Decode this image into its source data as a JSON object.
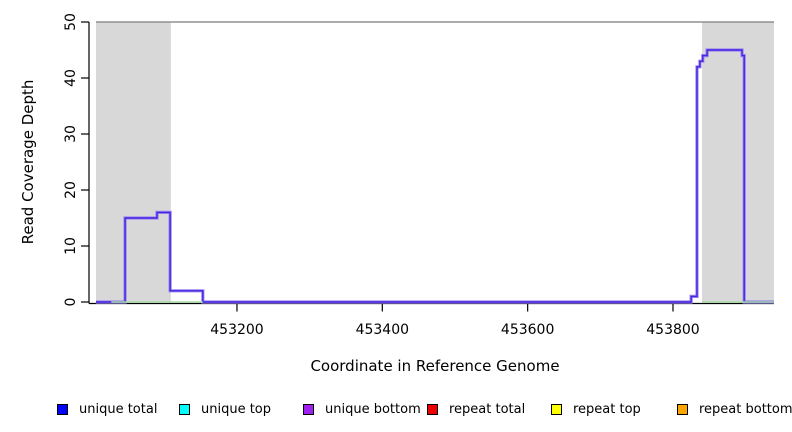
{
  "chart_data": {
    "type": "line",
    "subtype": "step-coverage",
    "title": "",
    "xlabel": "Coordinate in Reference Genome",
    "ylabel": "Read Coverage Depth",
    "xlim": [
      453006,
      453939
    ],
    "ylim": [
      0,
      50
    ],
    "xticks": [
      "453200",
      "453400",
      "453600",
      "453800"
    ],
    "xtick_values": [
      453200,
      453400,
      453600,
      453800
    ],
    "yticks": [
      "0",
      "10",
      "20",
      "30",
      "40",
      "50"
    ],
    "ytick_values": [
      0,
      10,
      20,
      30,
      40,
      50
    ],
    "grid": false,
    "legend_position": "bottom",
    "cap_line_y": 50,
    "shaded_regions": [
      {
        "from": 453006,
        "to": 453109
      },
      {
        "from": 453840,
        "to": 453939
      }
    ],
    "series": [
      {
        "name": "unique coverage (unique total + unique bottom overlapping)",
        "style": "step",
        "color_outer": "#9b84ef",
        "color_core": "#4524e2",
        "steps": [
          [
            453006,
            0
          ],
          [
            453046,
            15
          ],
          [
            453090,
            16
          ],
          [
            453108,
            2
          ],
          [
            453153,
            0
          ],
          [
            453825,
            1
          ],
          [
            453833,
            42
          ],
          [
            453837,
            43
          ],
          [
            453841,
            44
          ],
          [
            453847,
            45
          ],
          [
            453895,
            44
          ],
          [
            453898,
            0
          ],
          [
            453939,
            0
          ]
        ]
      },
      {
        "name": "zero-depth baseline segments",
        "style": "segments",
        "color": "#a5dba5",
        "value": 0,
        "segments": [
          [
            453027,
            453153
          ],
          [
            453840,
            453939
          ]
        ]
      }
    ]
  },
  "colors": {
    "band": "#d8d8d8",
    "cap_line": "#909090",
    "axis": "#000000"
  },
  "legend": {
    "items": [
      {
        "label": "unique total",
        "color": "#0000ff"
      },
      {
        "label": "unique top",
        "color": "#00ffff"
      },
      {
        "label": "unique bottom",
        "color": "#a020f0"
      },
      {
        "label": "repeat total",
        "color": "#ee0000"
      },
      {
        "label": "repeat top",
        "color": "#ffff00"
      },
      {
        "label": "repeat bottom",
        "color": "#ffa500"
      }
    ]
  }
}
